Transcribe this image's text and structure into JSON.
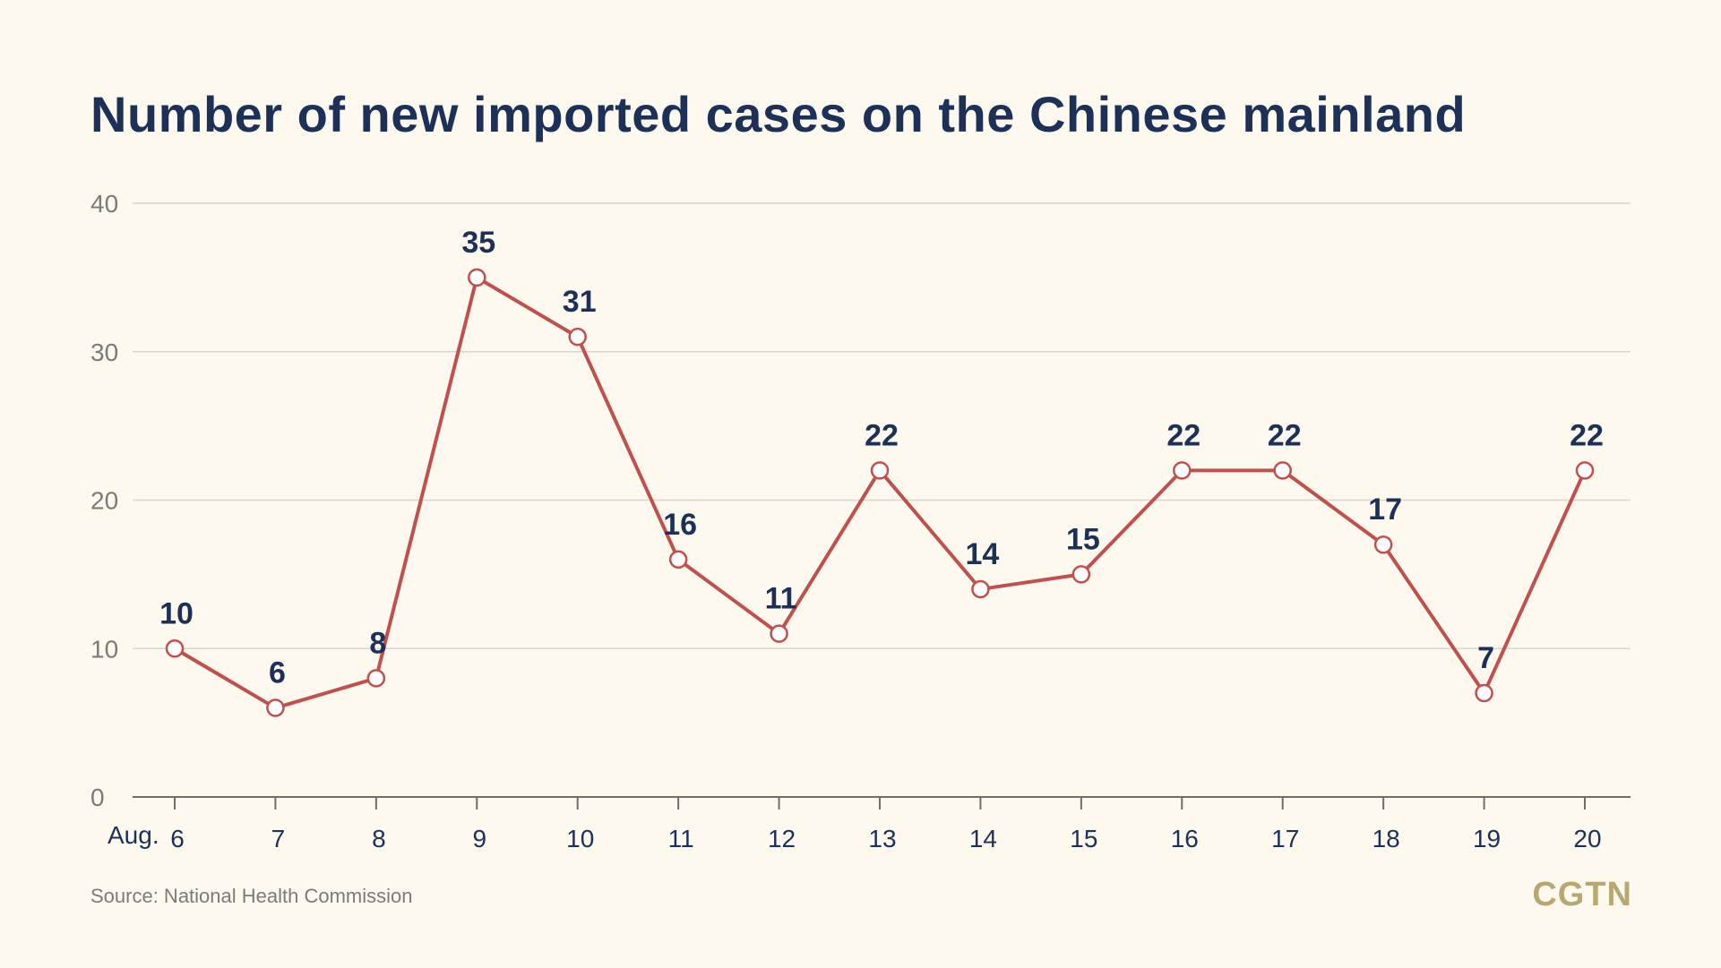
{
  "chart_data": {
    "type": "line",
    "title": "Number of new imported cases on the Chinese mainland",
    "x_prefix": "Aug.",
    "categories": [
      "6",
      "7",
      "8",
      "9",
      "10",
      "11",
      "12",
      "13",
      "14",
      "15",
      "16",
      "17",
      "18",
      "19",
      "20"
    ],
    "series": [
      {
        "values": [
          10,
          6,
          8,
          35,
          31,
          16,
          11,
          22,
          14,
          15,
          22,
          22,
          17,
          7,
          22
        ]
      }
    ],
    "yticks": [
      "0",
      "10",
      "20",
      "30",
      "40"
    ],
    "ylim": [
      0,
      40
    ],
    "grid": "horizontal",
    "legend": "none",
    "line_color": "#c0504d",
    "marker_fill": "#ffffff",
    "label_color": "#1d3158"
  },
  "footer": {
    "source": "Source: National Health Commission",
    "logo": "CGTN"
  }
}
